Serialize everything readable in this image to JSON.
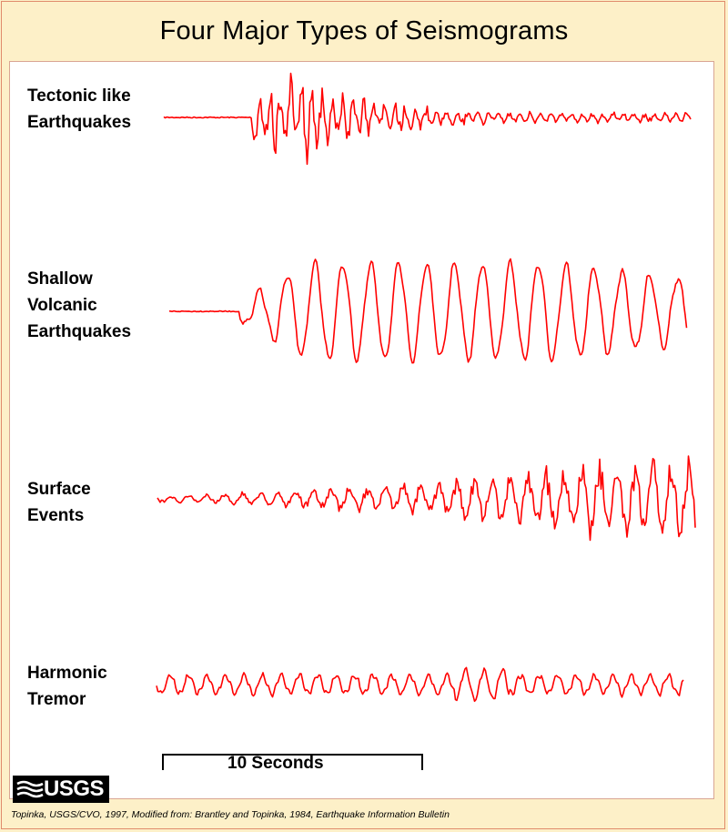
{
  "title": "Four Major Types of Seismograms",
  "labels": {
    "tectonic": "Tectonic like\nEarthquakes",
    "shallow": "Shallow\nVolcanic\nEarthquakes",
    "surface": "Surface\nEvents",
    "harmonic": "Harmonic\nTremor"
  },
  "scale_label": "10 Seconds",
  "logo_text": "USGS",
  "credit": "Topinka, USGS/CVO, 1997, Modified from: Brantley and Topinka, 1984, Earthquake Information Bulletin",
  "colors": {
    "trace": "#ff0000",
    "background": "#fdf0c8",
    "panel": "#ffffff"
  }
}
